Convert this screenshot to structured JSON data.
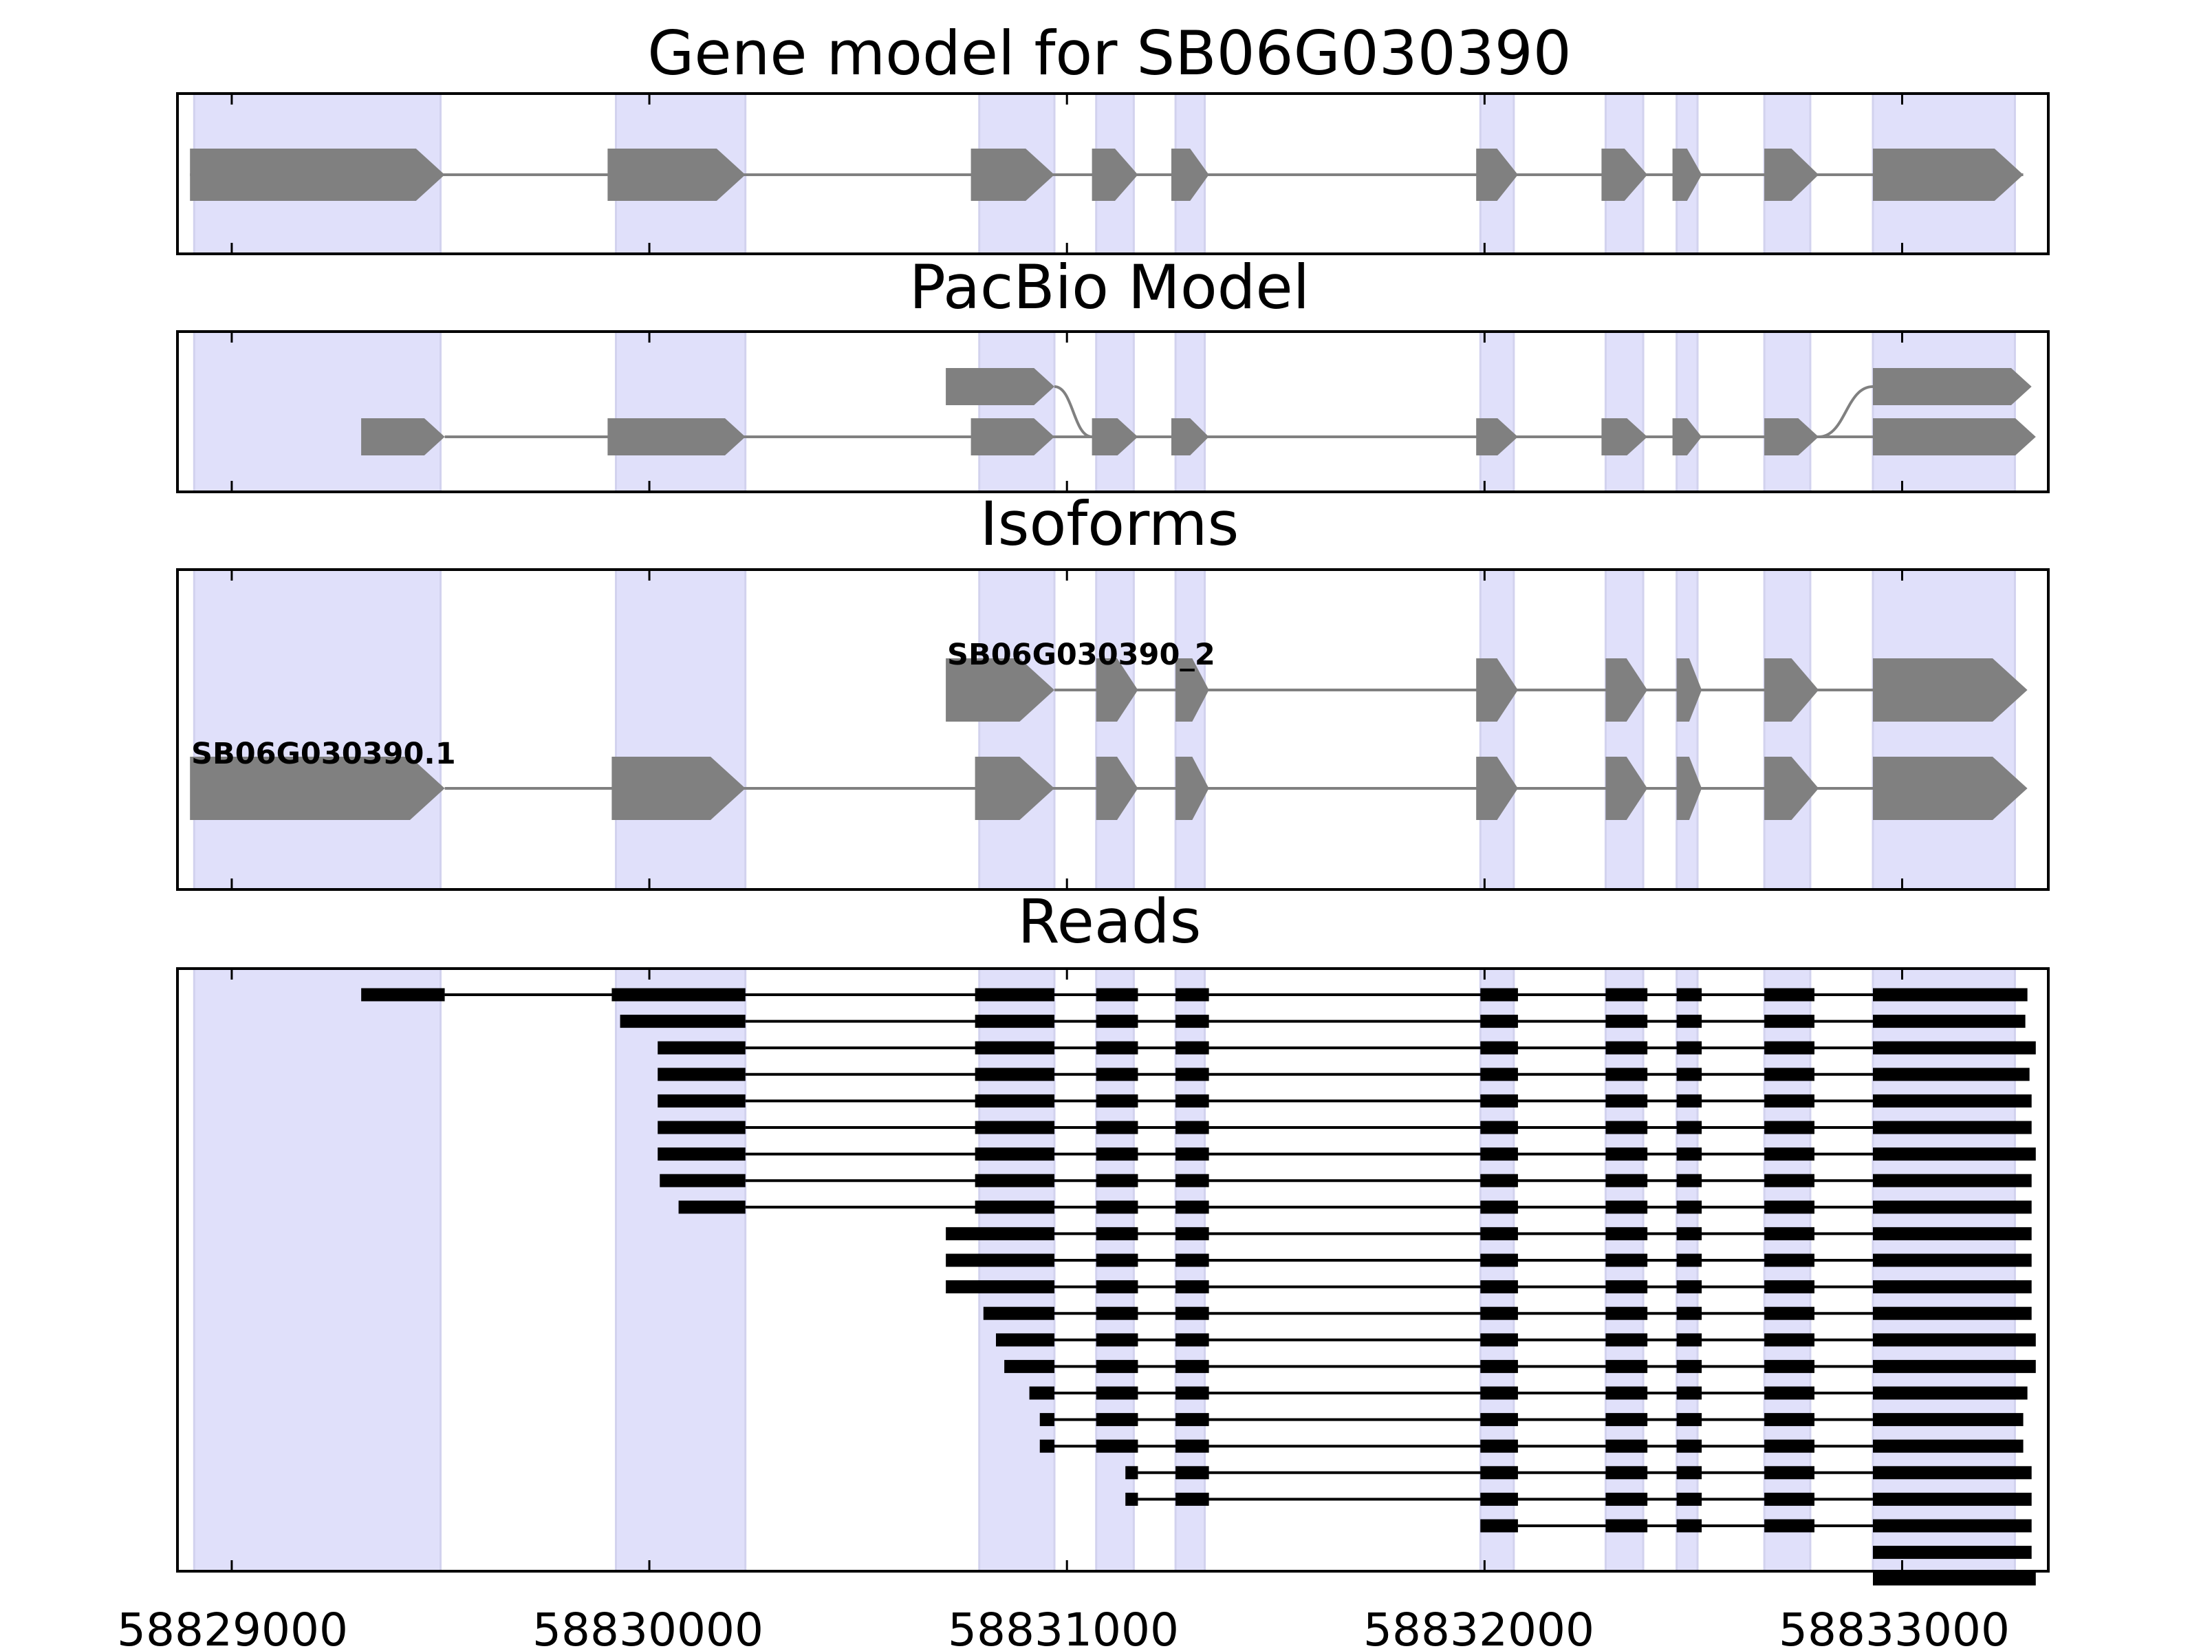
{
  "chart_data": {
    "type": "gene-structure",
    "xlim": [
      58828870,
      58833350
    ],
    "x_ticks": [
      58829000,
      58830000,
      58831000,
      58832000,
      58833000
    ],
    "x_tick_labels": [
      "58829000",
      "58830000",
      "58831000",
      "58832000",
      "58833000"
    ],
    "colors": {
      "exon": "#808080",
      "intron": "#808080",
      "read": "#000000",
      "highlight": "#e0e0fa",
      "highlight_edge": "#d2d2ee",
      "frame": "#000000"
    },
    "exon_regions": [
      [
        58828910,
        58829500
      ],
      [
        58829920,
        58830230
      ],
      [
        58830790,
        58830970
      ],
      [
        58831070,
        58831160
      ],
      [
        58831260,
        58831330
      ],
      [
        58831990,
        58832070
      ],
      [
        58832290,
        58832380
      ],
      [
        58832460,
        58832510
      ],
      [
        58832670,
        58832780
      ],
      [
        58832930,
        58833270
      ]
    ],
    "panels": [
      {
        "title": "Gene model for SB06G030390",
        "kind": "gene_model",
        "tracks": [
          {
            "exons": [
              [
                58828900,
                58829510
              ],
              [
                58829900,
                58830230
              ],
              [
                58830770,
                58830970
              ],
              [
                58831060,
                58831170
              ],
              [
                58831250,
                58831340
              ],
              [
                58831980,
                58832080
              ],
              [
                58832280,
                58832390
              ],
              [
                58832450,
                58832520
              ],
              [
                58832670,
                58832800
              ],
              [
                58832930,
                58833290
              ]
            ]
          }
        ]
      },
      {
        "title": "PacBio Model",
        "kind": "pacbio",
        "tracks": [
          {
            "exons": [
              [
                58829310,
                58829510
              ],
              [
                58829900,
                58830230
              ],
              [
                58830770,
                58830970
              ],
              [
                58831060,
                58831170
              ],
              [
                58831250,
                58831340
              ],
              [
                58831980,
                58832080
              ],
              [
                58832280,
                58832390
              ],
              [
                58832450,
                58832520
              ],
              [
                58832670,
                58832800
              ],
              [
                58832930,
                58833320
              ]
            ]
          },
          {
            "exons": [
              [
                58830710,
                58830970
              ],
              [
                58832930,
                58833310
              ]
            ]
          }
        ],
        "branches": [
          [
            58830970,
            58831060
          ],
          [
            58832800,
            58832930
          ]
        ]
      },
      {
        "title": "Isoforms",
        "kind": "isoforms",
        "tracks": [
          {
            "label": "SB06G030390.1",
            "exons": [
              [
                58828900,
                58829510
              ],
              [
                58829910,
                58830230
              ],
              [
                58830780,
                58830970
              ],
              [
                58831070,
                58831170
              ],
              [
                58831260,
                58831340
              ],
              [
                58831980,
                58832080
              ],
              [
                58832290,
                58832390
              ],
              [
                58832460,
                58832520
              ],
              [
                58832670,
                58832800
              ],
              [
                58832930,
                58833300
              ]
            ]
          },
          {
            "label": "SB06G030390_2",
            "exons": [
              [
                58830710,
                58830970
              ],
              [
                58831070,
                58831170
              ],
              [
                58831260,
                58831340
              ],
              [
                58831980,
                58832080
              ],
              [
                58832290,
                58832390
              ],
              [
                58832460,
                58832520
              ],
              [
                58832670,
                58832800
              ],
              [
                58832930,
                58833300
              ]
            ]
          }
        ]
      },
      {
        "title": "Reads",
        "kind": "reads",
        "reads": [
          [
            [
              58829310,
              58829510
            ],
            [
              58829910,
              58830230
            ],
            [
              58830780,
              58830970
            ],
            [
              58831070,
              58831170
            ],
            [
              58831260,
              58831340
            ],
            [
              58831990,
              58832080
            ],
            [
              58832290,
              58832390
            ],
            [
              58832460,
              58832520
            ],
            [
              58832670,
              58832790
            ],
            [
              58832930,
              58833300
            ]
          ],
          [
            [
              58829930,
              58830230
            ],
            [
              58830780,
              58830970
            ],
            [
              58831070,
              58831170
            ],
            [
              58831260,
              58831340
            ],
            [
              58831990,
              58832080
            ],
            [
              58832290,
              58832390
            ],
            [
              58832460,
              58832520
            ],
            [
              58832670,
              58832790
            ],
            [
              58832930,
              58833295
            ]
          ],
          [
            [
              58830020,
              58830230
            ],
            [
              58830780,
              58830970
            ],
            [
              58831070,
              58831170
            ],
            [
              58831260,
              58831340
            ],
            [
              58831990,
              58832080
            ],
            [
              58832290,
              58832390
            ],
            [
              58832460,
              58832520
            ],
            [
              58832670,
              58832790
            ],
            [
              58832930,
              58833320
            ]
          ],
          [
            [
              58830020,
              58830230
            ],
            [
              58830780,
              58830970
            ],
            [
              58831070,
              58831170
            ],
            [
              58831260,
              58831340
            ],
            [
              58831990,
              58832080
            ],
            [
              58832290,
              58832390
            ],
            [
              58832460,
              58832520
            ],
            [
              58832670,
              58832790
            ],
            [
              58832930,
              58833305
            ]
          ],
          [
            [
              58830020,
              58830230
            ],
            [
              58830780,
              58830970
            ],
            [
              58831070,
              58831170
            ],
            [
              58831260,
              58831340
            ],
            [
              58831990,
              58832080
            ],
            [
              58832290,
              58832390
            ],
            [
              58832460,
              58832520
            ],
            [
              58832670,
              58832790
            ],
            [
              58832930,
              58833310
            ]
          ],
          [
            [
              58830020,
              58830230
            ],
            [
              58830780,
              58830970
            ],
            [
              58831070,
              58831170
            ],
            [
              58831260,
              58831340
            ],
            [
              58831990,
              58832080
            ],
            [
              58832290,
              58832390
            ],
            [
              58832460,
              58832520
            ],
            [
              58832670,
              58832790
            ],
            [
              58832930,
              58833310
            ]
          ],
          [
            [
              58830020,
              58830230
            ],
            [
              58830780,
              58830970
            ],
            [
              58831070,
              58831170
            ],
            [
              58831260,
              58831340
            ],
            [
              58831990,
              58832080
            ],
            [
              58832290,
              58832390
            ],
            [
              58832460,
              58832520
            ],
            [
              58832670,
              58832790
            ],
            [
              58832930,
              58833320
            ]
          ],
          [
            [
              58830025,
              58830230
            ],
            [
              58830780,
              58830970
            ],
            [
              58831070,
              58831170
            ],
            [
              58831260,
              58831340
            ],
            [
              58831990,
              58832080
            ],
            [
              58832290,
              58832390
            ],
            [
              58832460,
              58832520
            ],
            [
              58832670,
              58832790
            ],
            [
              58832930,
              58833310
            ]
          ],
          [
            [
              58830070,
              58830230
            ],
            [
              58830780,
              58830970
            ],
            [
              58831070,
              58831170
            ],
            [
              58831260,
              58831340
            ],
            [
              58831990,
              58832080
            ],
            [
              58832290,
              58832390
            ],
            [
              58832460,
              58832520
            ],
            [
              58832670,
              58832790
            ],
            [
              58832930,
              58833310
            ]
          ],
          [
            [
              58830710,
              58830970
            ],
            [
              58831070,
              58831170
            ],
            [
              58831260,
              58831340
            ],
            [
              58831990,
              58832080
            ],
            [
              58832290,
              58832390
            ],
            [
              58832460,
              58832520
            ],
            [
              58832670,
              58832790
            ],
            [
              58832930,
              58833310
            ]
          ],
          [
            [
              58830710,
              58830970
            ],
            [
              58831070,
              58831170
            ],
            [
              58831260,
              58831340
            ],
            [
              58831990,
              58832080
            ],
            [
              58832290,
              58832390
            ],
            [
              58832460,
              58832520
            ],
            [
              58832670,
              58832790
            ],
            [
              58832930,
              58833310
            ]
          ],
          [
            [
              58830710,
              58830970
            ],
            [
              58831070,
              58831170
            ],
            [
              58831260,
              58831340
            ],
            [
              58831990,
              58832080
            ],
            [
              58832290,
              58832390
            ],
            [
              58832460,
              58832520
            ],
            [
              58832670,
              58832790
            ],
            [
              58832930,
              58833310
            ]
          ],
          [
            [
              58830800,
              58830970
            ],
            [
              58831070,
              58831170
            ],
            [
              58831260,
              58831340
            ],
            [
              58831990,
              58832080
            ],
            [
              58832290,
              58832390
            ],
            [
              58832460,
              58832520
            ],
            [
              58832670,
              58832790
            ],
            [
              58832930,
              58833310
            ]
          ],
          [
            [
              58830830,
              58830970
            ],
            [
              58831070,
              58831170
            ],
            [
              58831260,
              58831340
            ],
            [
              58831990,
              58832080
            ],
            [
              58832290,
              58832390
            ],
            [
              58832460,
              58832520
            ],
            [
              58832670,
              58832790
            ],
            [
              58832930,
              58833320
            ]
          ],
          [
            [
              58830850,
              58830970
            ],
            [
              58831070,
              58831170
            ],
            [
              58831260,
              58831340
            ],
            [
              58831990,
              58832080
            ],
            [
              58832290,
              58832390
            ],
            [
              58832460,
              58832520
            ],
            [
              58832670,
              58832790
            ],
            [
              58832930,
              58833320
            ]
          ],
          [
            [
              58830910,
              58830970
            ],
            [
              58831070,
              58831170
            ],
            [
              58831260,
              58831340
            ],
            [
              58831990,
              58832080
            ],
            [
              58832290,
              58832390
            ],
            [
              58832460,
              58832520
            ],
            [
              58832670,
              58832790
            ],
            [
              58832930,
              58833300
            ]
          ],
          [
            [
              58830935,
              58830970
            ],
            [
              58831070,
              58831170
            ],
            [
              58831260,
              58831340
            ],
            [
              58831990,
              58832080
            ],
            [
              58832290,
              58832390
            ],
            [
              58832460,
              58832520
            ],
            [
              58832670,
              58832790
            ],
            [
              58832930,
              58833290
            ]
          ],
          [
            [
              58830935,
              58830970
            ],
            [
              58831070,
              58831170
            ],
            [
              58831260,
              58831340
            ],
            [
              58831990,
              58832080
            ],
            [
              58832290,
              58832390
            ],
            [
              58832460,
              58832520
            ],
            [
              58832670,
              58832790
            ],
            [
              58832930,
              58833290
            ]
          ],
          [
            [
              58831140,
              58831170
            ],
            [
              58831260,
              58831340
            ],
            [
              58831990,
              58832080
            ],
            [
              58832290,
              58832390
            ],
            [
              58832460,
              58832520
            ],
            [
              58832670,
              58832790
            ],
            [
              58832930,
              58833310
            ]
          ],
          [
            [
              58831140,
              58831170
            ],
            [
              58831260,
              58831340
            ],
            [
              58831990,
              58832080
            ],
            [
              58832290,
              58832390
            ],
            [
              58832460,
              58832520
            ],
            [
              58832670,
              58832790
            ],
            [
              58832930,
              58833310
            ]
          ],
          [
            [
              58831990,
              58832080
            ],
            [
              58832290,
              58832390
            ],
            [
              58832460,
              58832520
            ],
            [
              58832670,
              58832790
            ],
            [
              58832930,
              58833310
            ]
          ],
          [
            [
              58832930,
              58833310
            ]
          ],
          [
            [
              58832930,
              58833320
            ]
          ]
        ]
      }
    ]
  }
}
